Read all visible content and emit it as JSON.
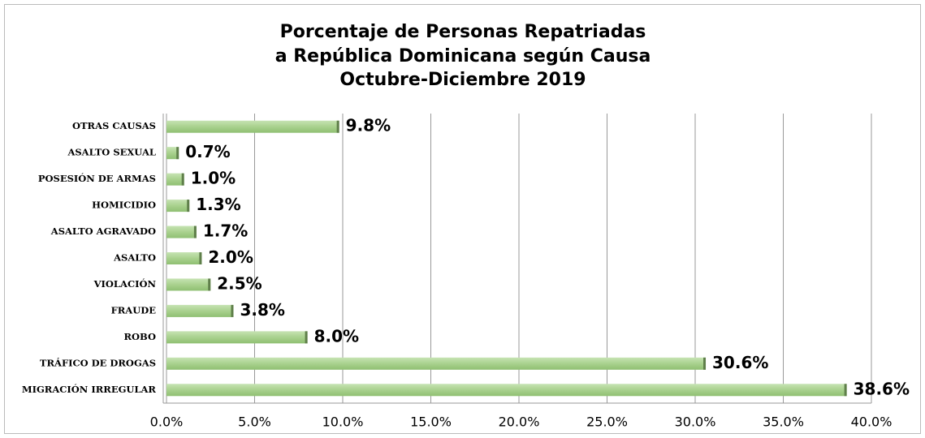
{
  "chart_data": {
    "type": "bar",
    "orientation": "horizontal",
    "title": [
      "Porcentaje de Personas Repatriadas",
      "a República Dominicana según Causa",
      "Octubre-Diciembre 2019"
    ],
    "categories": [
      "MIGRACIÓN IRREGULAR",
      "TRÁFICO DE DROGAS",
      "ROBO",
      "FRAUDE",
      "VIOLACIÓN",
      "ASALTO",
      "ASALTO AGRAVADO",
      "HOMICIDIO",
      "POSESIÓN DE ARMAS",
      "ASALTO SEXUAL",
      "OTRAS CAUSAS"
    ],
    "values": [
      38.6,
      30.6,
      8.0,
      3.8,
      2.5,
      2.0,
      1.7,
      1.3,
      1.0,
      0.7,
      9.8
    ],
    "value_labels": [
      "38.6%",
      "30.6%",
      "8.0%",
      "3.8%",
      "2.5%",
      "2.0%",
      "1.7%",
      "1.3%",
      "1.0%",
      "0.7%",
      "9.8%"
    ],
    "color": "#a9d18e",
    "xlim": [
      0,
      40
    ],
    "xticks": [
      {
        "value": 0,
        "label": "0.0%"
      },
      {
        "value": 5,
        "label": "5.0%"
      },
      {
        "value": 10,
        "label": "10.0%"
      },
      {
        "value": 15,
        "label": "15.0%"
      },
      {
        "value": 20,
        "label": "20.0%"
      },
      {
        "value": 25,
        "label": "25.0%"
      },
      {
        "value": 30,
        "label": "30.0%"
      },
      {
        "value": 35,
        "label": "35.0%"
      },
      {
        "value": 40,
        "label": "40.0%"
      }
    ],
    "grid": true
  }
}
